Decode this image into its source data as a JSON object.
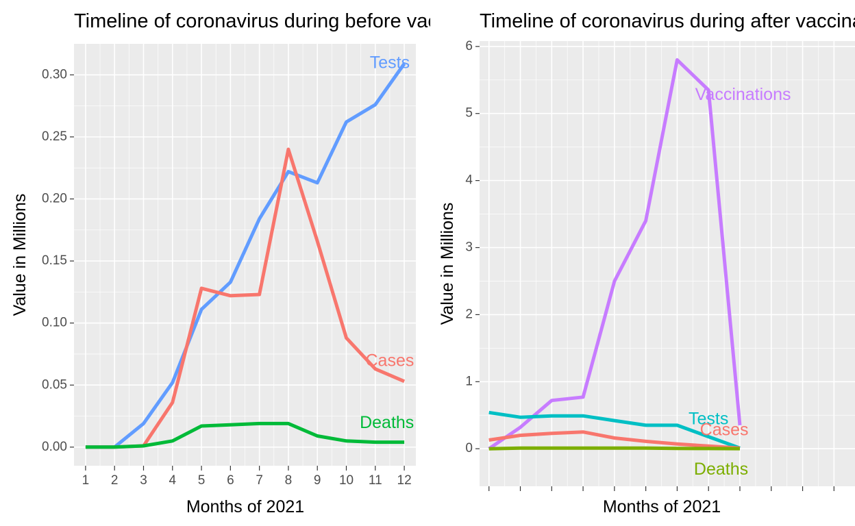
{
  "chart_data": [
    {
      "type": "line",
      "title": "Timeline of coronavirus during before vaccination",
      "xlabel": "Months of 2021",
      "ylabel": "Value in Millions",
      "xlim": [
        0.6,
        12.4
      ],
      "ylim": [
        -0.015,
        0.325
      ],
      "x": [
        1,
        2,
        3,
        4,
        5,
        6,
        7,
        8,
        9,
        10,
        11,
        12
      ],
      "x_tick_labels": [
        "1",
        "2",
        "3",
        "4",
        "5",
        "6",
        "7",
        "8",
        "9",
        "10",
        "11",
        "12"
      ],
      "y_ticks": [
        0,
        0.05,
        0.1,
        0.15,
        0.2,
        0.25,
        0.3
      ],
      "y_tick_labels": [
        "0.00",
        "0.05",
        "0.10",
        "0.15",
        "0.20",
        "0.25",
        "0.30"
      ],
      "grid": true,
      "series": [
        {
          "name": "Tests",
          "color": "#619cff",
          "values": [
            0,
            0,
            0.019,
            0.052,
            0.111,
            0.133,
            0.184,
            0.222,
            0.213,
            0.262,
            0.276,
            0.309
          ],
          "label_at": [
            11.5,
            0.309
          ]
        },
        {
          "name": "Cases",
          "color": "#f8766d",
          "values": [
            0,
            0,
            0.001,
            0.036,
            0.128,
            0.122,
            0.123,
            0.24,
            0.166,
            0.088,
            0.063,
            0.053
          ],
          "label_at": [
            11.5,
            0.069
          ]
        },
        {
          "name": "Deaths",
          "color": "#00ba38",
          "values": [
            0,
            0,
            0.001,
            0.005,
            0.017,
            0.018,
            0.019,
            0.019,
            0.009,
            0.005,
            0.004,
            0.004
          ],
          "label_at": [
            11.4,
            0.019
          ]
        }
      ]
    },
    {
      "type": "line",
      "title": "Timeline of coronavirus during after vaccination",
      "xlabel": "Months of 2021",
      "ylabel": "Value in Millions",
      "xlim": [
        1,
        12.97
      ],
      "ylim": [
        -0.56,
        6.08
      ],
      "x": [
        1.3,
        2.3,
        3.3,
        4.3,
        5.3,
        6.3,
        7.3,
        8.3,
        9.3,
        10.3,
        11.3,
        12.3
      ],
      "x_ticks": [
        1.3,
        2.3,
        3.3,
        4.3,
        5.3,
        6.3,
        7.3,
        8.3,
        9.3,
        10.3,
        11.3,
        12.3
      ],
      "x_tick_labels": [],
      "y_ticks": [
        0,
        1,
        2,
        3,
        4,
        5,
        6
      ],
      "y_tick_labels": [
        "0",
        "1",
        "2",
        "3",
        "4",
        "5",
        "6"
      ],
      "grid": true,
      "series": [
        {
          "name": "Vaccinations",
          "color": "#c77cff",
          "values": [
            0,
            0.32,
            0.72,
            0.77,
            2.5,
            3.4,
            5.8,
            5.35,
            0.35
          ],
          "x": [
            1.3,
            2.3,
            3.3,
            4.3,
            5.3,
            6.3,
            7.3,
            8.3,
            9.3
          ],
          "label_at": [
            9.4,
            5.27
          ]
        },
        {
          "name": "Tests",
          "color": "#00bfc4",
          "values": [
            0.54,
            0.47,
            0.49,
            0.49,
            0.42,
            0.35,
            0.35,
            0.18,
            0.01
          ],
          "x": [
            1.3,
            2.3,
            3.3,
            4.3,
            5.3,
            6.3,
            7.3,
            8.3,
            9.3
          ],
          "label_at": [
            8.3,
            0.43
          ]
        },
        {
          "name": "Cases",
          "color": "#f8766d",
          "values": [
            0.13,
            0.2,
            0.23,
            0.25,
            0.16,
            0.11,
            0.07,
            0.04,
            0.01
          ],
          "x": [
            1.3,
            2.3,
            3.3,
            4.3,
            5.3,
            6.3,
            7.3,
            8.3,
            9.3
          ],
          "label_at": [
            8.8,
            0.27
          ]
        },
        {
          "name": "Deaths",
          "color": "#7cae00",
          "values": [
            0,
            0.01,
            0.01,
            0.01,
            0.01,
            0.01,
            0.005,
            0.003,
            0.001
          ],
          "x": [
            1.3,
            2.3,
            3.3,
            4.3,
            5.3,
            6.3,
            7.3,
            8.3,
            9.3
          ],
          "label_at": [
            8.7,
            -0.32
          ]
        }
      ]
    }
  ]
}
